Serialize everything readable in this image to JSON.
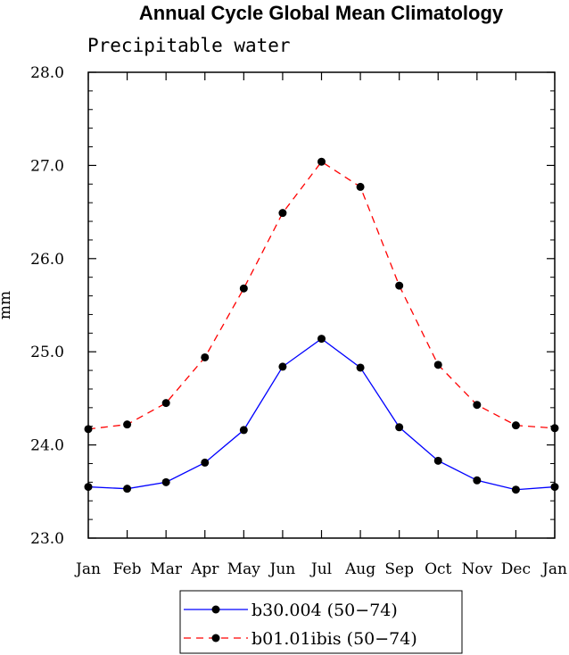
{
  "chart_data": {
    "type": "line",
    "title": "Annual Cycle Global Mean Climatology",
    "subtitle": "Precipitable water",
    "xlabel": "",
    "ylabel": "mm",
    "categories": [
      "Jan",
      "Feb",
      "Mar",
      "Apr",
      "May",
      "Jun",
      "Jul",
      "Aug",
      "Sep",
      "Oct",
      "Nov",
      "Dec",
      "Jan"
    ],
    "ylim": [
      23.0,
      28.0
    ],
    "yticks": [
      "23.0",
      "24.0",
      "25.0",
      "26.0",
      "27.0",
      "28.0"
    ],
    "grid": false,
    "legend_position": "bottom-center",
    "series": [
      {
        "name": "b30.004 (50−74)",
        "color": "#0000ff",
        "line_style": "solid",
        "marker": "filled-circle",
        "values": [
          23.55,
          23.53,
          23.6,
          23.81,
          24.16,
          24.84,
          25.14,
          24.83,
          24.19,
          23.83,
          23.62,
          23.52,
          23.55
        ]
      },
      {
        "name": "b01.01ibis (50−74)",
        "color": "#ff0000",
        "line_style": "dashed",
        "marker": "filled-circle",
        "values": [
          24.17,
          24.22,
          24.45,
          24.94,
          25.68,
          26.49,
          27.04,
          26.77,
          25.71,
          24.86,
          24.43,
          24.21,
          24.18
        ]
      }
    ]
  }
}
